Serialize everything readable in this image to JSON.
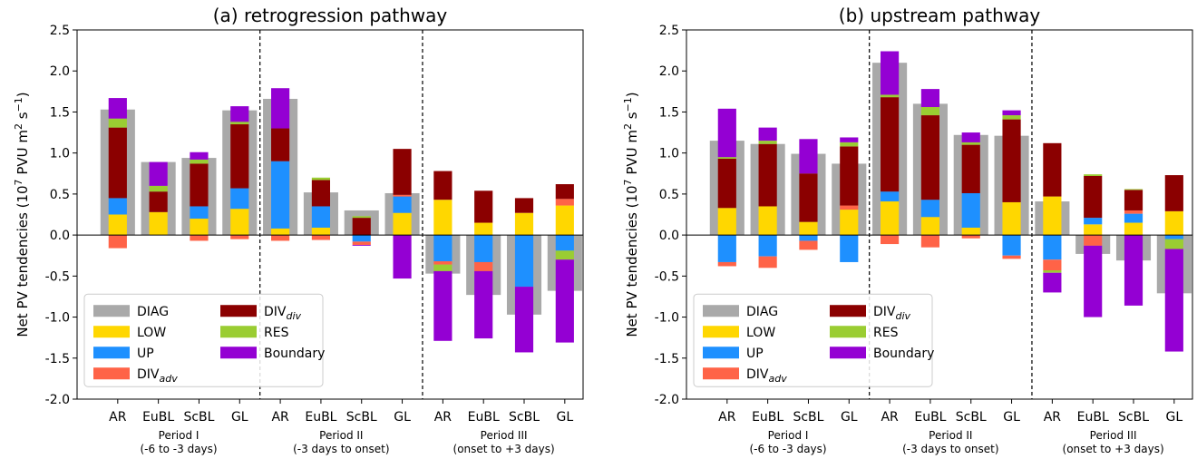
{
  "legend_labels": {
    "DIAG": "DIAG",
    "LOW": "LOW",
    "UP": "UP",
    "DIVadv": "DIV",
    "DIVadv_sub": "adv",
    "DIVdiv": "DIV",
    "DIVdiv_sub": "div",
    "RES": "RES",
    "Boundary": "Boundary"
  },
  "ylabel": {
    "main": "Net PV tendencies (10",
    "exp": "7",
    "unit": " PVU m",
    "exp2": "2",
    "tail": " s",
    "exp3": "−1",
    "close": ")"
  },
  "periods": [
    {
      "line1": "Period I",
      "line2": "(-6 to -3 days)"
    },
    {
      "line1": "Period II",
      "line2": "(-3 days to onset)"
    },
    {
      "line1": "Period III",
      "line2": "(onset to +3 days)"
    }
  ],
  "colors": {
    "DIAG": "#a9a9a9",
    "LOW": "#ffd700",
    "UP": "#1e90ff",
    "DIVadv": "#ff6347",
    "DIVdiv": "#8b0000",
    "RES": "#9acd32",
    "Boundary": "#9400d3"
  },
  "chart_data": [
    {
      "type": "bar",
      "title": "(a) retrogression pathway",
      "categories": [
        "AR",
        "EuBL",
        "ScBL",
        "GL",
        "AR",
        "EuBL",
        "ScBL",
        "GL",
        "AR",
        "EuBL",
        "ScBL",
        "GL"
      ],
      "ylim": [
        -2.0,
        2.5
      ],
      "yticks": [
        -2.0,
        -1.5,
        -1.0,
        -0.5,
        0.0,
        0.5,
        1.0,
        1.5,
        2.0,
        2.5
      ],
      "legend_position": "lower-left",
      "series": [
        {
          "name": "DIAG",
          "values": [
            1.53,
            0.89,
            0.94,
            1.52,
            1.66,
            0.52,
            0.3,
            0.51,
            -0.47,
            -0.73,
            -0.97,
            -0.68
          ]
        },
        {
          "name": "LOW",
          "values": [
            0.25,
            0.28,
            0.2,
            0.32,
            0.08,
            0.09,
            0.0,
            0.27,
            0.43,
            0.15,
            0.27,
            0.36
          ]
        },
        {
          "name": "UP",
          "values": [
            0.2,
            0.0,
            0.15,
            0.25,
            0.82,
            0.26,
            -0.08,
            0.2,
            -0.32,
            -0.33,
            -0.63,
            -0.19
          ]
        },
        {
          "name": "DIVadv",
          "values": [
            -0.16,
            0.0,
            -0.07,
            -0.05,
            -0.07,
            -0.06,
            -0.04,
            0.02,
            -0.04,
            -0.11,
            0.0,
            0.08
          ]
        },
        {
          "name": "DIVdiv",
          "values": [
            0.86,
            0.25,
            0.52,
            0.78,
            0.4,
            0.32,
            0.21,
            0.56,
            0.35,
            0.39,
            0.18,
            0.18
          ]
        },
        {
          "name": "RES",
          "values": [
            0.11,
            0.07,
            0.05,
            0.03,
            0.0,
            0.03,
            0.02,
            0.0,
            -0.08,
            0.0,
            0.0,
            -0.11
          ]
        },
        {
          "name": "Boundary",
          "values": [
            0.25,
            0.29,
            0.09,
            0.19,
            0.49,
            0.0,
            -0.01,
            -0.53,
            -0.85,
            -0.82,
            -0.8,
            -1.01
          ]
        }
      ]
    },
    {
      "type": "bar",
      "title": "(b) upstream pathway",
      "categories": [
        "AR",
        "EuBL",
        "ScBL",
        "GL",
        "AR",
        "EuBL",
        "ScBL",
        "GL",
        "AR",
        "EuBL",
        "ScBL",
        "GL"
      ],
      "ylim": [
        -2.0,
        2.5
      ],
      "yticks": [
        -2.0,
        -1.5,
        -1.0,
        -0.5,
        0.0,
        0.5,
        1.0,
        1.5,
        2.0,
        2.5
      ],
      "legend_position": "lower-left",
      "series": [
        {
          "name": "DIAG",
          "values": [
            1.15,
            1.11,
            0.99,
            0.87,
            2.1,
            1.6,
            1.22,
            1.21,
            0.41,
            -0.23,
            -0.31,
            -0.71
          ]
        },
        {
          "name": "LOW",
          "values": [
            0.33,
            0.35,
            0.16,
            0.31,
            0.41,
            0.22,
            0.09,
            0.4,
            0.47,
            0.13,
            0.15,
            0.29
          ]
        },
        {
          "name": "UP",
          "values": [
            -0.33,
            -0.26,
            -0.07,
            -0.33,
            0.12,
            0.21,
            0.42,
            -0.25,
            -0.3,
            0.08,
            0.11,
            -0.05
          ]
        },
        {
          "name": "DIVadv",
          "values": [
            -0.05,
            -0.14,
            -0.11,
            0.05,
            -0.11,
            -0.15,
            -0.04,
            -0.04,
            -0.13,
            -0.13,
            0.04,
            0.0
          ]
        },
        {
          "name": "DIVdiv",
          "values": [
            0.6,
            0.76,
            0.59,
            0.72,
            1.15,
            1.03,
            0.59,
            1.01,
            0.65,
            0.51,
            0.25,
            0.44
          ]
        },
        {
          "name": "RES",
          "values": [
            0.02,
            0.04,
            0.0,
            0.05,
            0.03,
            0.1,
            0.03,
            0.05,
            -0.03,
            0.02,
            0.01,
            -0.12
          ]
        },
        {
          "name": "Boundary",
          "values": [
            0.59,
            0.16,
            0.42,
            0.06,
            0.53,
            0.22,
            0.12,
            0.06,
            -0.24,
            -0.87,
            -0.86,
            -1.25
          ]
        }
      ]
    }
  ]
}
